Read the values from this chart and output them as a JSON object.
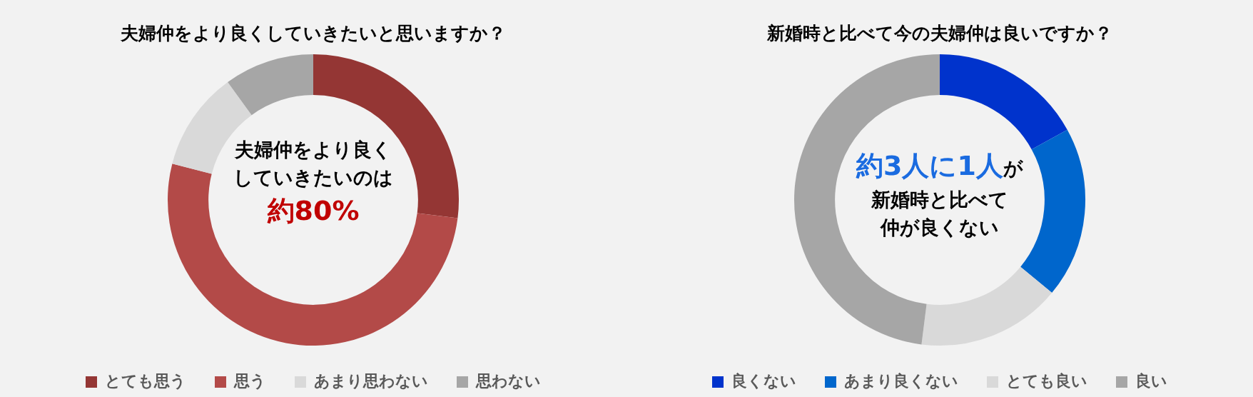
{
  "chart_data": [
    {
      "type": "donut",
      "title": "夫婦仲をより良くしていきたいと思いますか？",
      "categories": [
        "とても思う",
        "思う",
        "あまり思わない",
        "思わない"
      ],
      "values": [
        27,
        52,
        11,
        10
      ],
      "colors": [
        "#943634",
        "#b34a48",
        "#d9d9d9",
        "#a6a6a6"
      ],
      "legend": "bottom",
      "annotations": [
        "夫婦仲をより良く",
        "していきたいのは",
        "約80%"
      ]
    },
    {
      "type": "donut",
      "title": "新婚時と比べて今の夫婦仲は良いですか？",
      "categories": [
        "良くない",
        "あまり良くない",
        "とても良い",
        "良い"
      ],
      "values": [
        17,
        19,
        16,
        48
      ],
      "colors": [
        "#0033cc",
        "#0066cc",
        "#d9d9d9",
        "#a6a6a6"
      ],
      "legend": "bottom",
      "annotations": [
        "約3人に1人",
        "が",
        "新婚時と比べて",
        "仲が良くない"
      ]
    }
  ]
}
